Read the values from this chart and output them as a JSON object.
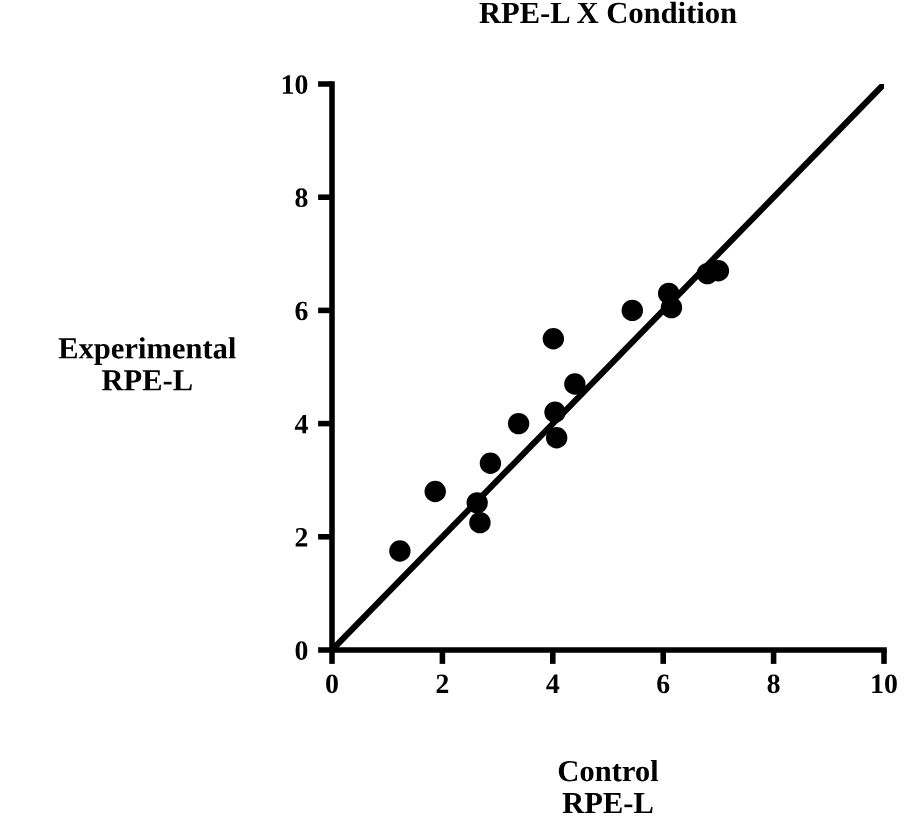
{
  "chart_data": {
    "type": "scatter",
    "title": "RPE-L X Condition",
    "xlabel": "Control\nRPE-L",
    "ylabel": "Experimental\nRPE-L",
    "xlim": [
      0,
      10
    ],
    "ylim": [
      0,
      10
    ],
    "xticks": [
      0,
      2,
      4,
      6,
      8,
      10
    ],
    "yticks": [
      0,
      2,
      4,
      6,
      8,
      10
    ],
    "grid": false,
    "series": [
      {
        "marker": "circle",
        "color": "#000000",
        "x": [
          1.23,
          1.87,
          2.63,
          2.68,
          2.87,
          3.38,
          4.01,
          4.04,
          4.07,
          4.4,
          5.44,
          6.1,
          6.15,
          6.8,
          7.0
        ],
        "values": [
          1.75,
          2.8,
          2.6,
          2.25,
          3.3,
          4.0,
          5.5,
          4.2,
          3.75,
          4.7,
          6.0,
          6.3,
          6.05,
          6.65,
          6.7
        ]
      },
      {
        "type": "line",
        "marker": "none",
        "color": "#000000",
        "x": [
          0,
          10
        ],
        "values": [
          0,
          10
        ]
      }
    ]
  }
}
